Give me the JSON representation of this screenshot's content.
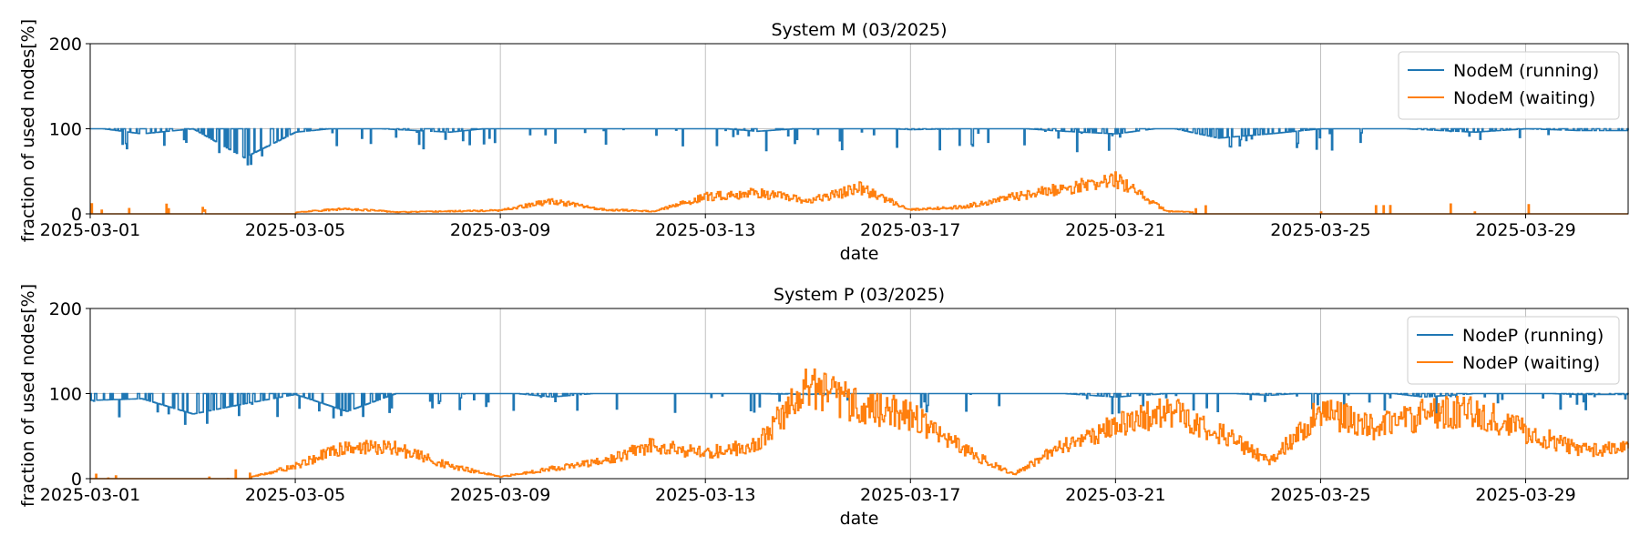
{
  "chart_data": [
    {
      "type": "line",
      "title": "System M (03/2025)",
      "xlabel": "date",
      "ylabel": "fraction of used nodes[%]",
      "xlim": [
        "2025-03-01",
        "2025-03-31"
      ],
      "ylim": [
        0,
        200
      ],
      "xticks": [
        "2025-03-01",
        "2025-03-05",
        "2025-03-09",
        "2025-03-13",
        "2025-03-17",
        "2025-03-21",
        "2025-03-25",
        "2025-03-29"
      ],
      "yticks": [
        0,
        100,
        200
      ],
      "grid": true,
      "legend_position": "top-right",
      "series": [
        {
          "name": "NodeM (running)",
          "color": "#1f77b4",
          "x": [
            "2025-03-01",
            "2025-03-02",
            "2025-03-03",
            "2025-03-04",
            "2025-03-05",
            "2025-03-06",
            "2025-03-07",
            "2025-03-08",
            "2025-03-09",
            "2025-03-10",
            "2025-03-11",
            "2025-03-12",
            "2025-03-13",
            "2025-03-14",
            "2025-03-15",
            "2025-03-16",
            "2025-03-17",
            "2025-03-18",
            "2025-03-19",
            "2025-03-20",
            "2025-03-21",
            "2025-03-22",
            "2025-03-23",
            "2025-03-24",
            "2025-03-25",
            "2025-03-26",
            "2025-03-27",
            "2025-03-28",
            "2025-03-29",
            "2025-03-30"
          ],
          "values": [
            98,
            90,
            96,
            62,
            92,
            98,
            95,
            92,
            98,
            99,
            98,
            97,
            98,
            93,
            97,
            98,
            95,
            96,
            97,
            93,
            90,
            98,
            85,
            90,
            96,
            98,
            95,
            92,
            96,
            94
          ]
        },
        {
          "name": "NodeM (waiting)",
          "color": "#ff7f0e",
          "x": [
            "2025-03-01",
            "2025-03-02",
            "2025-03-03",
            "2025-03-04",
            "2025-03-05",
            "2025-03-06",
            "2025-03-07",
            "2025-03-08",
            "2025-03-09",
            "2025-03-10",
            "2025-03-11",
            "2025-03-12",
            "2025-03-13",
            "2025-03-14",
            "2025-03-15",
            "2025-03-16",
            "2025-03-17",
            "2025-03-18",
            "2025-03-19",
            "2025-03-20",
            "2025-03-21",
            "2025-03-22",
            "2025-03-23",
            "2025-03-24",
            "2025-03-25",
            "2025-03-26",
            "2025-03-27",
            "2025-03-28",
            "2025-03-29",
            "2025-03-30"
          ],
          "values": [
            1,
            0,
            1,
            0,
            2,
            6,
            2,
            3,
            4,
            15,
            5,
            3,
            20,
            25,
            15,
            30,
            5,
            8,
            20,
            30,
            40,
            3,
            1,
            0,
            2,
            1,
            1,
            2,
            1,
            1
          ]
        }
      ]
    },
    {
      "type": "line",
      "title": "System P (03/2025)",
      "xlabel": "date",
      "ylabel": "fraction of used nodes[%]",
      "xlim": [
        "2025-03-01",
        "2025-03-31"
      ],
      "ylim": [
        0,
        200
      ],
      "xticks": [
        "2025-03-01",
        "2025-03-05",
        "2025-03-09",
        "2025-03-13",
        "2025-03-17",
        "2025-03-21",
        "2025-03-25",
        "2025-03-29"
      ],
      "yticks": [
        0,
        100,
        200
      ],
      "grid": true,
      "legend_position": "top-right",
      "series": [
        {
          "name": "NodeP (running)",
          "color": "#1f77b4",
          "x": [
            "2025-03-01",
            "2025-03-02",
            "2025-03-03",
            "2025-03-04",
            "2025-03-05",
            "2025-03-06",
            "2025-03-07",
            "2025-03-08",
            "2025-03-09",
            "2025-03-10",
            "2025-03-11",
            "2025-03-12",
            "2025-03-13",
            "2025-03-14",
            "2025-03-15",
            "2025-03-16",
            "2025-03-17",
            "2025-03-18",
            "2025-03-19",
            "2025-03-20",
            "2025-03-21",
            "2025-03-22",
            "2025-03-23",
            "2025-03-24",
            "2025-03-25",
            "2025-03-26",
            "2025-03-27",
            "2025-03-28",
            "2025-03-29",
            "2025-03-30"
          ],
          "values": [
            88,
            90,
            72,
            84,
            95,
            75,
            97,
            96,
            98,
            92,
            97,
            98,
            97,
            96,
            95,
            98,
            97,
            97,
            96,
            96,
            92,
            96,
            97,
            94,
            98,
            99,
            92,
            96,
            97,
            95
          ]
        },
        {
          "name": "NodeP (waiting)",
          "color": "#ff7f0e",
          "x": [
            "2025-03-01",
            "2025-03-02",
            "2025-03-03",
            "2025-03-04",
            "2025-03-05",
            "2025-03-06",
            "2025-03-07",
            "2025-03-08",
            "2025-03-09",
            "2025-03-10",
            "2025-03-11",
            "2025-03-12",
            "2025-03-13",
            "2025-03-14",
            "2025-03-15",
            "2025-03-16",
            "2025-03-17",
            "2025-03-18",
            "2025-03-19",
            "2025-03-20",
            "2025-03-21",
            "2025-03-22",
            "2025-03-23",
            "2025-03-24",
            "2025-03-25",
            "2025-03-26",
            "2025-03-27",
            "2025-03-28",
            "2025-03-29",
            "2025-03-30"
          ],
          "values": [
            0,
            0,
            0,
            0,
            15,
            38,
            35,
            15,
            2,
            12,
            20,
            40,
            30,
            40,
            110,
            85,
            75,
            35,
            5,
            40,
            62,
            80,
            55,
            20,
            80,
            60,
            75,
            80,
            55,
            35
          ]
        }
      ]
    }
  ]
}
